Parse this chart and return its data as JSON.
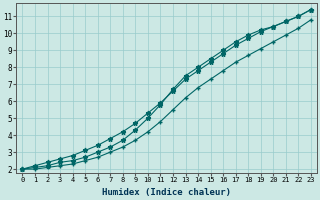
{
  "xlabel": "Humidex (Indice chaleur)",
  "ylabel": "",
  "bg_color": "#cce8e4",
  "grid_color": "#99cccc",
  "line_color": "#006666",
  "xlim": [
    -0.5,
    23.5
  ],
  "ylim": [
    1.8,
    11.8
  ],
  "yticks": [
    2,
    3,
    4,
    5,
    6,
    7,
    8,
    9,
    10,
    11
  ],
  "xticks": [
    0,
    1,
    2,
    3,
    4,
    5,
    6,
    7,
    8,
    9,
    10,
    11,
    12,
    13,
    14,
    15,
    16,
    17,
    18,
    19,
    20,
    21,
    22,
    23
  ],
  "line1_x": [
    0,
    1,
    2,
    3,
    4,
    5,
    6,
    7,
    8,
    9,
    10,
    11,
    12,
    13,
    14,
    15,
    16,
    17,
    18,
    19,
    20,
    21,
    22,
    23
  ],
  "line1_y": [
    2.0,
    2.1,
    2.2,
    2.4,
    2.5,
    2.7,
    3.0,
    3.3,
    3.7,
    4.3,
    5.0,
    5.8,
    6.7,
    7.5,
    8.0,
    8.5,
    9.0,
    9.5,
    9.9,
    10.2,
    10.4,
    10.7,
    11.0,
    11.4
  ],
  "line2_x": [
    0,
    1,
    2,
    3,
    4,
    5,
    6,
    7,
    8,
    9,
    10,
    11,
    12,
    13,
    14,
    15,
    16,
    17,
    18,
    19,
    20,
    21,
    22,
    23
  ],
  "line2_y": [
    2.0,
    2.2,
    2.4,
    2.6,
    2.8,
    3.1,
    3.4,
    3.8,
    4.2,
    4.7,
    5.3,
    5.9,
    6.6,
    7.3,
    7.8,
    8.3,
    8.8,
    9.3,
    9.7,
    10.1,
    10.4,
    10.7,
    11.0,
    11.4
  ],
  "line3_x": [
    0,
    1,
    2,
    3,
    4,
    5,
    6,
    7,
    8,
    9,
    10,
    11,
    12,
    13,
    14,
    15,
    16,
    17,
    18,
    19,
    20,
    21,
    22,
    23
  ],
  "line3_y": [
    2.0,
    2.0,
    2.1,
    2.2,
    2.3,
    2.5,
    2.7,
    3.0,
    3.3,
    3.7,
    4.2,
    4.8,
    5.5,
    6.2,
    6.8,
    7.3,
    7.8,
    8.3,
    8.7,
    9.1,
    9.5,
    9.9,
    10.3,
    10.8
  ]
}
